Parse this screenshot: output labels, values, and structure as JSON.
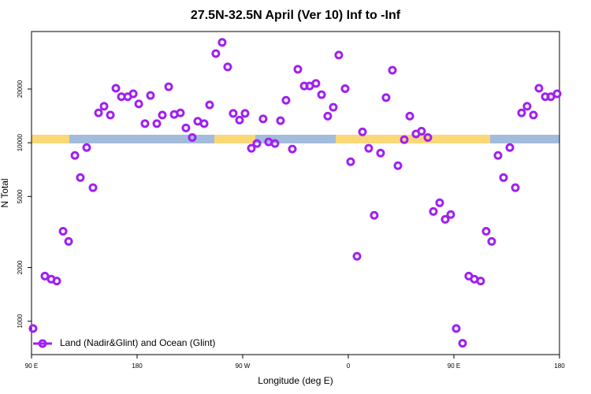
{
  "chart_data": {
    "type": "scatter",
    "title": "27.5N-32.5N April (Ver 10)   Inf to -Inf",
    "xlabel": "Longitude (deg E)",
    "ylabel": "N Total",
    "x": [
      91.3,
      101.4,
      106.8,
      111.5,
      116.9,
      121.6,
      127,
      131.6,
      137,
      142.4,
      147.1,
      151.8,
      157.2,
      161.9,
      166.6,
      172,
      176.7,
      181.4,
      186.7,
      191.4,
      196.8,
      201.5,
      206.9,
      211.6,
      216.9,
      221.6,
      227,
      231.7,
      237.1,
      241.8,
      247.1,
      252.5,
      257.2,
      261.9,
      267.3,
      272,
      277.4,
      282.1,
      287.4,
      292.1,
      297.5,
      302.2,
      306.9,
      312.3,
      317,
      322.4,
      327.1,
      332.4,
      337.2,
      342.5,
      347.2,
      351.9,
      357.3,
      362,
      367.4,
      372.1,
      377.4,
      382.1,
      387.5,
      392.2,
      397.6,
      402.3,
      407.7,
      412.4,
      417.7,
      422.4,
      427.8,
      432.5,
      437.9,
      442.6,
      447.3,
      452,
      457.4,
      462.7,
      467.4,
      472.8,
      477.5,
      482.2,
      487.6,
      492.3,
      497.7,
      502.4,
      507.7,
      512.4,
      517.8,
      522.5,
      527.9,
      532.6,
      538
    ],
    "series": [
      {
        "name": "Land (Nadir&Glint) and Ocean (Glint)",
        "color": "#a020f0",
        "values": [
          910,
          1790,
          1720,
          1680,
          3190,
          2800,
          8490,
          6380,
          9400,
          5600,
          14700,
          16000,
          14300,
          20200,
          18100,
          18100,
          18800,
          16500,
          12800,
          18400,
          12800,
          14300,
          20600,
          14400,
          14700,
          12100,
          10700,
          13200,
          12800,
          16300,
          31600,
          36500,
          26600,
          14600,
          13400,
          14600,
          9310,
          9900,
          13600,
          10100,
          9900,
          13300,
          17300,
          9220,
          25800,
          20800,
          20800,
          21500,
          18600,
          14100,
          15800,
          31000,
          20100,
          7830,
          2310,
          11500,
          9310,
          3920,
          8750,
          17900,
          25500,
          7440,
          10400,
          14100,
          11200,
          11600,
          10700,
          4120,
          4610,
          3720,
          3960,
          910,
          752,
          1790,
          1720,
          1680,
          3190,
          2800,
          8490,
          6380,
          9400,
          5600,
          14700,
          16000,
          14300,
          20200,
          18100,
          18100,
          18800
        ]
      }
    ],
    "xlim": [
      90,
      540
    ],
    "xticks": [
      {
        "value": 90,
        "label": "90 E"
      },
      {
        "value": 180,
        "label": "180"
      },
      {
        "value": 270,
        "label": "90 W"
      },
      {
        "value": 360,
        "label": "0"
      },
      {
        "value": 450,
        "label": "90 E"
      },
      {
        "value": 540,
        "label": "180"
      }
    ],
    "ylim": [
      650,
      42000
    ],
    "yticks": [
      1000,
      2000,
      5000,
      10000,
      20000
    ],
    "log_y": true,
    "grid": false,
    "legend": "bottom-left"
  }
}
